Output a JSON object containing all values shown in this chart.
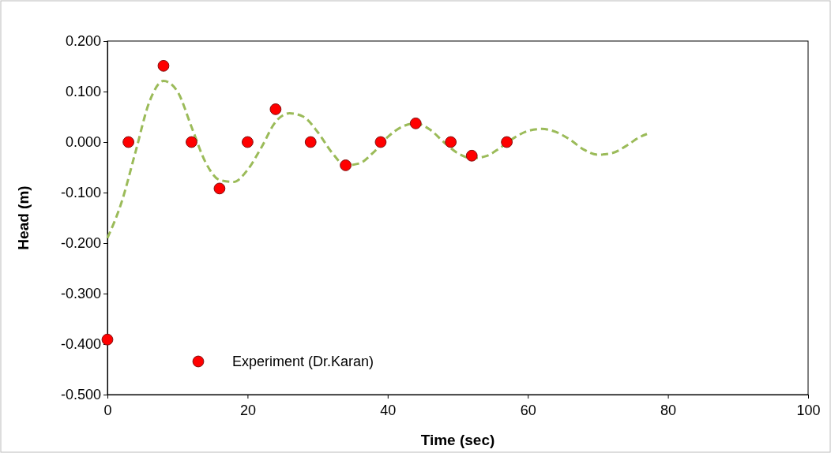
{
  "chart_data": {
    "type": "scatter",
    "xlabel": "Time (sec)",
    "ylabel": "Head (m)",
    "xlim": [
      0,
      100
    ],
    "xticks": [
      0,
      20,
      40,
      60,
      80,
      100
    ],
    "ylim": [
      -0.5,
      0.2
    ],
    "yticks": [
      {
        "value": -0.5,
        "label": "-0.500"
      },
      {
        "value": -0.4,
        "label": "-0.400"
      },
      {
        "value": -0.3,
        "label": "-0.300"
      },
      {
        "value": -0.2,
        "label": "-0.200"
      },
      {
        "value": -0.1,
        "label": "-0.100"
      },
      {
        "value": 0,
        "label": "0.000"
      },
      {
        "value": 0.1,
        "label": "0.100"
      },
      {
        "value": 0.2,
        "label": "0.200"
      }
    ],
    "grid": false,
    "legend": "bottom left",
    "series": [
      {
        "type": "line",
        "color": "#9bbb59",
        "line_style": "dashed",
        "marker": "none",
        "x": [
          0,
          2,
          4,
          6,
          8,
          10,
          12,
          14,
          16,
          18,
          20,
          22,
          24,
          26,
          28,
          30,
          32,
          34,
          36,
          38,
          40,
          42,
          44,
          46,
          48,
          50,
          52,
          54,
          56,
          58,
          60,
          62,
          64,
          66,
          68,
          70,
          72,
          74,
          76,
          77
        ],
        "values": [
          -0.19,
          -0.12,
          -0.02,
          0.08,
          0.121,
          0.1,
          0.03,
          -0.04,
          -0.075,
          -0.079,
          -0.055,
          -0.01,
          0.04,
          0.057,
          0.05,
          0.02,
          -0.02,
          -0.046,
          -0.042,
          -0.02,
          0.01,
          0.03,
          0.037,
          0.025,
          0.0,
          -0.022,
          -0.032,
          -0.028,
          -0.012,
          0.008,
          0.022,
          0.026,
          0.02,
          0.005,
          -0.015,
          -0.025,
          -0.022,
          -0.008,
          0.01,
          0.016
        ]
      },
      {
        "name": "Experiment (Dr.Karan)",
        "color": "#ff0000",
        "marker": "circle",
        "x": [
          0,
          3,
          8,
          12,
          16,
          20,
          24,
          29,
          34,
          39,
          44,
          49,
          52,
          57
        ],
        "values": [
          -0.391,
          0,
          0.151,
          0,
          -0.092,
          0,
          0.065,
          0,
          -0.046,
          0,
          0.037,
          0,
          -0.027,
          0
        ]
      }
    ]
  }
}
